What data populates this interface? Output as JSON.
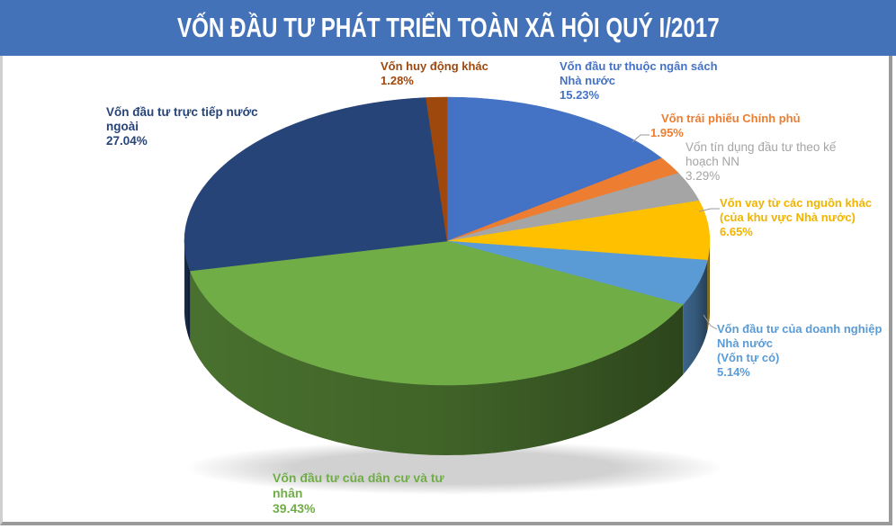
{
  "title": "VỐN ĐẦU TƯ PHÁT TRIỂN TOÀN XÃ HỘI QUÝ I/2017",
  "chart_data": {
    "type": "pie",
    "style": "3d",
    "title": "VỐN ĐẦU TƯ PHÁT TRIỂN TOÀN XÃ HỘI QUÝ I/2017",
    "unit": "%",
    "start_angle": "12 o'clock, clockwise",
    "slices": [
      {
        "label": "Vốn đầu tư thuộc ngân sách Nhà nước",
        "value": 15.23,
        "color": "#4472c4"
      },
      {
        "label": "Vốn trái phiếu Chính phủ",
        "value": 1.95,
        "color": "#ed7d31"
      },
      {
        "label": "Vốn tín dụng đầu tư theo kế hoạch NN",
        "value": 3.29,
        "color": "#a5a5a5"
      },
      {
        "label": "Vốn vay từ các nguồn khác (của khu vực Nhà nước)",
        "value": 6.65,
        "color": "#ffc000"
      },
      {
        "label": "Vốn đầu tư của doanh nghiệp Nhà nước (Vốn tự có)",
        "value": 5.14,
        "color": "#5b9bd5"
      },
      {
        "label": "Vốn đầu tư của dân cư và tư nhân",
        "value": 39.43,
        "color": "#70ad47"
      },
      {
        "label": "Vốn đầu tư trực tiếp nước ngoài",
        "value": 27.04,
        "color": "#264478"
      },
      {
        "label": "Vốn huy động khác",
        "value": 1.28,
        "color": "#9e480e"
      }
    ]
  },
  "labels": {
    "ngan_sach": {
      "line1": "Vốn đầu tư thuộc ngân sách",
      "line2": "Nhà nước",
      "pct": "15.23%",
      "color": "#4472c4"
    },
    "trai_phieu": {
      "line1": "Vốn trái phiếu Chính phủ",
      "pct": "1.95%",
      "color": "#ed7d31"
    },
    "tin_dung": {
      "line1": "Vốn tín dụng đầu tư theo kế",
      "line2": "hoạch NN",
      "pct": "3.29%",
      "color": "#a5a5a5"
    },
    "vay_khac": {
      "line1": "Vốn vay từ các nguồn khác",
      "line2": "(của khu vực Nhà nước)",
      "pct": "6.65%",
      "color": "#ffc000"
    },
    "dnnn": {
      "line1": "Vốn đầu tư của doanh nghiệp",
      "line2": "Nhà nước",
      "line3": "(Vốn tự có)",
      "pct": "5.14%",
      "color": "#5b9bd5"
    },
    "dan_cu": {
      "line1": "Vốn đầu tư của dân cư và tư",
      "line2": "nhân",
      "pct": "39.43%",
      "color": "#70ad47"
    },
    "fdi": {
      "line1": "Vốn đầu tư trực tiếp nước",
      "line2": "ngoài",
      "pct": "27.04%",
      "color": "#264478"
    },
    "huy_dong": {
      "line1": "Vốn huy động khác",
      "pct": "1.28%",
      "color": "#9e480e"
    }
  }
}
